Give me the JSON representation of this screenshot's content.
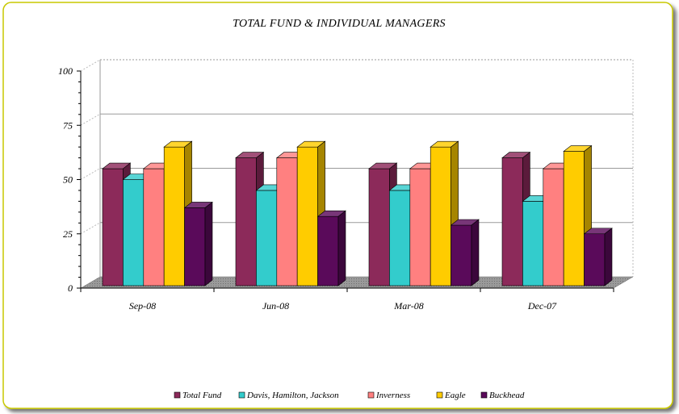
{
  "chart_data": {
    "type": "bar",
    "title": "TOTAL FUND & INDIVIDUAL MANAGERS",
    "categories": [
      "Sep-08",
      "Jun-08",
      "Mar-08",
      "Dec-07"
    ],
    "series": [
      {
        "name": "Total Fund",
        "values": [
          55,
          60,
          55,
          60
        ],
        "color": "#8c2a5a"
      },
      {
        "name": "Davis, Hamilton, Jackson",
        "values": [
          50,
          45,
          45,
          40
        ],
        "color": "#33cccc"
      },
      {
        "name": "Inverness",
        "values": [
          55,
          60,
          55,
          55
        ],
        "color": "#ff8080"
      },
      {
        "name": "Eagle",
        "values": [
          65,
          65,
          65,
          63
        ],
        "color": "#ffcc00"
      },
      {
        "name": "Buckhead",
        "values": [
          37,
          33,
          29,
          25
        ],
        "color": "#5a0a5a"
      }
    ],
    "ylim": [
      0,
      100
    ],
    "yticks": [
      "0",
      "25",
      "50",
      "75",
      "100"
    ],
    "grid": true,
    "legend_position": "bottom",
    "style": "3d-clustered-column"
  },
  "colors": {
    "frame_border": "#c8c800",
    "frame_shadow": "#555555",
    "floor": "#808080",
    "gridline": "#9a9a9a"
  }
}
